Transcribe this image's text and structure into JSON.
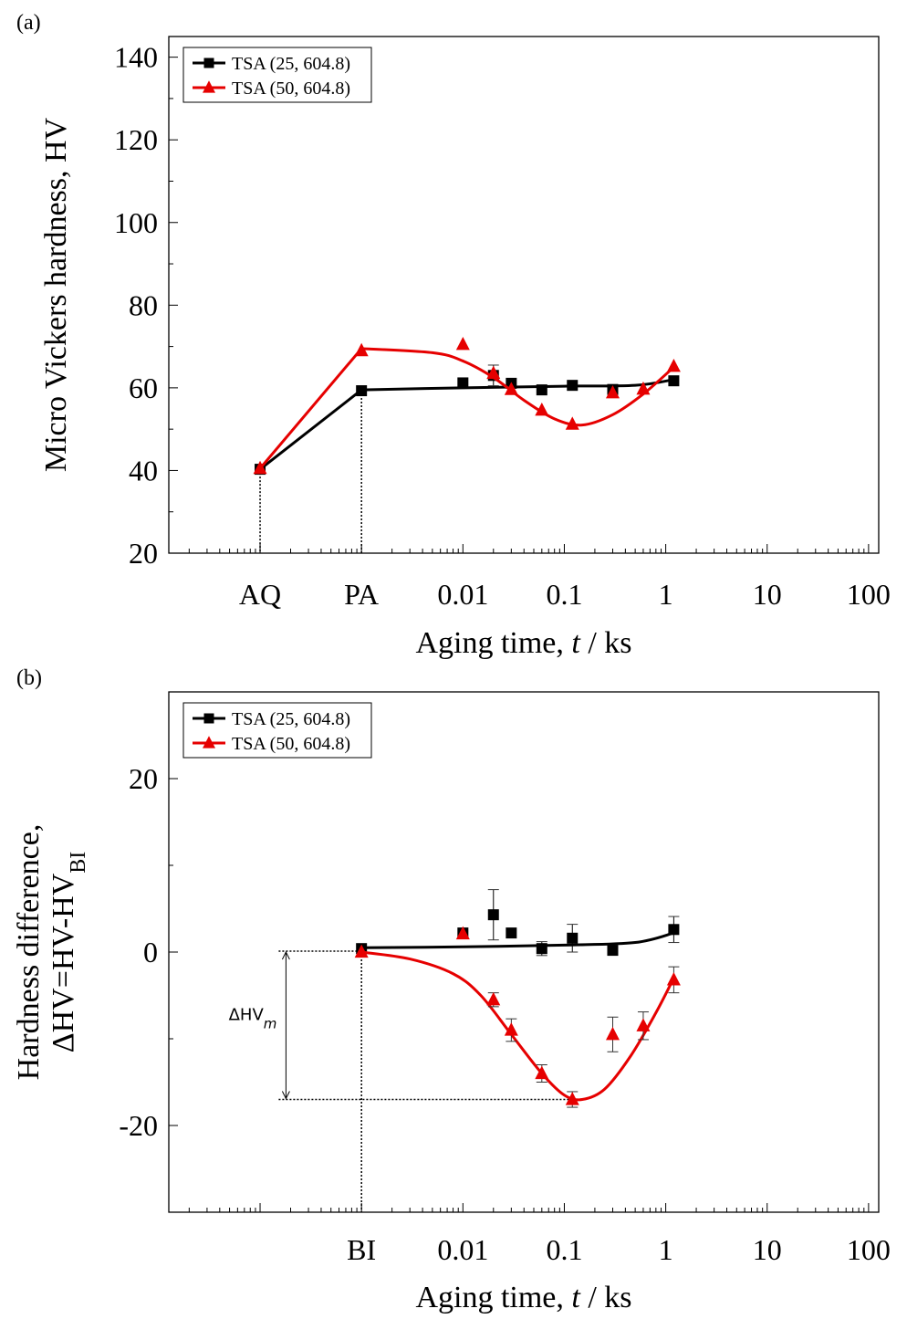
{
  "chart_data": [
    {
      "panel_label": "(a)",
      "type": "line",
      "x_scale": "log",
      "xlabel": "Aging time, ",
      "xlabel_italic": "t",
      "xlabel_tail": " / ks",
      "ylabel": "Micro Vickers hardness, HV",
      "ylim": [
        20,
        145
      ],
      "yticks": [
        20,
        40,
        60,
        80,
        100,
        120,
        140
      ],
      "special_ticks": [
        {
          "label": "AQ",
          "x": 0.0001
        },
        {
          "label": "PA",
          "x": 0.001
        }
      ],
      "xticks": [
        {
          "label": "0.01",
          "x": 0.01
        },
        {
          "label": "0.1",
          "x": 0.1
        },
        {
          "label": "1",
          "x": 1
        },
        {
          "label": "10",
          "x": 10
        },
        {
          "label": "100",
          "x": 100
        }
      ],
      "legend_position": "top-left",
      "series": [
        {
          "name": "TSA (25, 604.8)",
          "color": "#000000",
          "marker": "square",
          "points": [
            {
              "x": 0.0001,
              "y": 40.3
            },
            {
              "x": 0.001,
              "y": 59.3
            },
            {
              "x": 0.01,
              "y": 61.2
            },
            {
              "x": 0.02,
              "y": 63.0,
              "err": 2.5
            },
            {
              "x": 0.03,
              "y": 61.1
            },
            {
              "x": 0.06,
              "y": 59.5
            },
            {
              "x": 0.12,
              "y": 60.6
            },
            {
              "x": 0.3,
              "y": 59.6
            },
            {
              "x": 1.2,
              "y": 61.7
            }
          ],
          "fit": [
            {
              "x": 0.0001,
              "y": 40.3
            },
            {
              "x": 0.001,
              "y": 59.5
            },
            {
              "x": 0.01,
              "y": 60.0
            },
            {
              "x": 0.1,
              "y": 60.4
            },
            {
              "x": 0.5,
              "y": 60.6
            },
            {
              "x": 1.2,
              "y": 62.0
            }
          ]
        },
        {
          "name": "TSA (50, 604.8)",
          "color": "#e60000",
          "marker": "triangle",
          "points": [
            {
              "x": 0.0001,
              "y": 40.5
            },
            {
              "x": 0.001,
              "y": 69.0
            },
            {
              "x": 0.01,
              "y": 70.5
            },
            {
              "x": 0.02,
              "y": 63.5
            },
            {
              "x": 0.03,
              "y": 59.6
            },
            {
              "x": 0.06,
              "y": 54.6
            },
            {
              "x": 0.12,
              "y": 51.2
            },
            {
              "x": 0.3,
              "y": 58.8
            },
            {
              "x": 0.6,
              "y": 59.7
            },
            {
              "x": 1.2,
              "y": 65.2
            }
          ],
          "fit": [
            {
              "x": 0.0001,
              "y": 40.5
            },
            {
              "x": 0.001,
              "y": 69.5
            },
            {
              "x": 0.005,
              "y": 68.5
            },
            {
              "x": 0.01,
              "y": 66.5
            },
            {
              "x": 0.02,
              "y": 62.5
            },
            {
              "x": 0.04,
              "y": 57.0
            },
            {
              "x": 0.08,
              "y": 52.5
            },
            {
              "x": 0.15,
              "y": 51.0
            },
            {
              "x": 0.3,
              "y": 53.5
            },
            {
              "x": 0.6,
              "y": 58.5
            },
            {
              "x": 1.2,
              "y": 65.0
            }
          ]
        }
      ],
      "guides": [
        {
          "x": 0.0001,
          "y": 40.3
        },
        {
          "x": 0.001,
          "y": 59.3
        }
      ]
    },
    {
      "panel_label": "(b)",
      "type": "line",
      "x_scale": "log",
      "xlabel": "Aging time, ",
      "xlabel_italic": "t",
      "xlabel_tail": " / ks",
      "ylabel_line1": "Hardness difference,",
      "ylabel_line2": "ΔHV=HV-HV",
      "ylabel_sub": "BI",
      "ylim": [
        -30,
        30
      ],
      "yticks": [
        -20,
        0,
        20
      ],
      "special_ticks": [
        {
          "label": "BI",
          "x": 0.001
        }
      ],
      "xticks": [
        {
          "label": "0.01",
          "x": 0.01
        },
        {
          "label": "0.1",
          "x": 0.1
        },
        {
          "label": "1",
          "x": 1
        },
        {
          "label": "10",
          "x": 10
        },
        {
          "label": "100",
          "x": 100
        }
      ],
      "legend_position": "top-left",
      "annotation": {
        "text": "ΔHV",
        "sub": "m",
        "x": 0.00018,
        "y_top": 0.1,
        "y_bottom": -17.0
      },
      "series": [
        {
          "name": "TSA (25, 604.8)",
          "color": "#000000",
          "marker": "square",
          "points": [
            {
              "x": 0.001,
              "y": 0.4
            },
            {
              "x": 0.01,
              "y": 2.2
            },
            {
              "x": 0.02,
              "y": 4.3,
              "err": 2.9
            },
            {
              "x": 0.03,
              "y": 2.2
            },
            {
              "x": 0.06,
              "y": 0.4,
              "err": 0.8
            },
            {
              "x": 0.12,
              "y": 1.6,
              "err": 1.6
            },
            {
              "x": 0.3,
              "y": 0.2
            },
            {
              "x": 1.2,
              "y": 2.6,
              "err": 1.5
            }
          ],
          "fit": [
            {
              "x": 0.001,
              "y": 0.5
            },
            {
              "x": 0.01,
              "y": 0.6
            },
            {
              "x": 0.1,
              "y": 0.8
            },
            {
              "x": 0.5,
              "y": 1.1
            },
            {
              "x": 1.2,
              "y": 2.2
            }
          ]
        },
        {
          "name": "TSA (50, 604.8)",
          "color": "#e60000",
          "marker": "triangle",
          "points": [
            {
              "x": 0.001,
              "y": 0.0
            },
            {
              "x": 0.01,
              "y": 2.1
            },
            {
              "x": 0.02,
              "y": -5.5,
              "err": 0.8
            },
            {
              "x": 0.03,
              "y": -9.0,
              "err": 1.3
            },
            {
              "x": 0.06,
              "y": -14.0,
              "err": 1.0
            },
            {
              "x": 0.12,
              "y": -17.0,
              "err": 0.9
            },
            {
              "x": 0.3,
              "y": -9.5,
              "err": 2.0
            },
            {
              "x": 0.6,
              "y": -8.5,
              "err": 1.6
            },
            {
              "x": 1.2,
              "y": -3.2,
              "err": 1.5
            }
          ],
          "fit": [
            {
              "x": 0.001,
              "y": 0.0
            },
            {
              "x": 0.003,
              "y": -0.8
            },
            {
              "x": 0.008,
              "y": -2.5
            },
            {
              "x": 0.015,
              "y": -5.0
            },
            {
              "x": 0.03,
              "y": -9.5
            },
            {
              "x": 0.06,
              "y": -14.0
            },
            {
              "x": 0.1,
              "y": -16.5
            },
            {
              "x": 0.15,
              "y": -17.0
            },
            {
              "x": 0.25,
              "y": -15.8
            },
            {
              "x": 0.45,
              "y": -12.0
            },
            {
              "x": 0.8,
              "y": -7.0
            },
            {
              "x": 1.2,
              "y": -3.0
            }
          ]
        }
      ],
      "guides": [
        {
          "x": 0.001,
          "y": 0.0
        }
      ]
    }
  ]
}
